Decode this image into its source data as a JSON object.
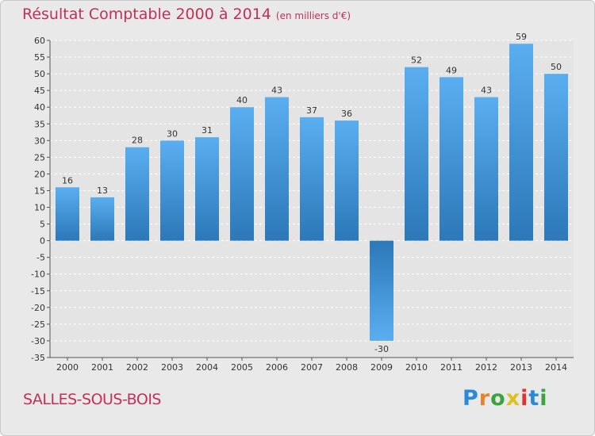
{
  "title": "Résultat Comptable 2000 à 2014",
  "unit_note": "(en milliers d'€)",
  "commune": "SALLES-SOUS-BOIS",
  "logo": {
    "letters": [
      "P",
      "r",
      "o",
      "x",
      "i",
      "t",
      "i"
    ],
    "colors": [
      "#2a8ad8",
      "#e2842a",
      "#3da33d",
      "#e0c020",
      "#d33",
      "#2a8ad8",
      "#3da33d"
    ]
  },
  "colors": {
    "title": "#c0305a",
    "bar_top": "#5aaef0",
    "bar_bottom": "#2c78b8",
    "grid": "#ffffff",
    "axis": "#555555"
  },
  "chart_data": {
    "type": "bar",
    "title": "Résultat Comptable 2000 à 2014",
    "ylabel": "en milliers d'€",
    "categories": [
      "2000",
      "2001",
      "2002",
      "2003",
      "2004",
      "2005",
      "2006",
      "2007",
      "2008",
      "2009",
      "2010",
      "2011",
      "2012",
      "2013",
      "2014"
    ],
    "values": [
      16,
      13,
      28,
      30,
      31,
      40,
      43,
      37,
      36,
      -30,
      52,
      49,
      43,
      59,
      50
    ],
    "ylim": [
      -35,
      60
    ],
    "yticks": [
      60,
      55,
      50,
      45,
      40,
      35,
      30,
      25,
      20,
      15,
      10,
      5,
      0,
      -5,
      -10,
      -15,
      -20,
      -25,
      -30,
      -35
    ],
    "grid": true
  }
}
